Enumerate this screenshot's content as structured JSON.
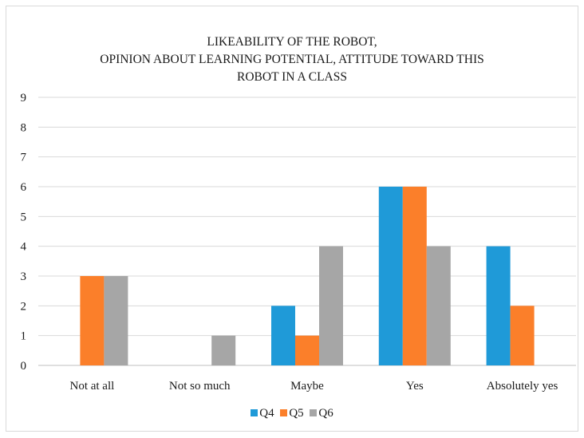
{
  "chart_data": {
    "type": "bar",
    "title": [
      "LIKEABILITY OF THE ROBOT,",
      "OPINION ABOUT LEARNING POTENTIAL, ATTITUDE TOWARD THIS",
      "ROBOT IN A CLASS"
    ],
    "categories": [
      "Not at all",
      "Not so much",
      "Maybe",
      "Yes",
      "Absolutely yes"
    ],
    "series": [
      {
        "name": "Q4",
        "color": "#1f9ad8",
        "values": [
          0,
          0,
          2,
          6,
          4
        ]
      },
      {
        "name": "Q5",
        "color": "#fb7f2a",
        "values": [
          3,
          0,
          1,
          6,
          2
        ]
      },
      {
        "name": "Q6",
        "color": "#a6a6a6",
        "values": [
          3,
          1,
          4,
          4,
          0
        ]
      }
    ],
    "ylim": [
      0,
      9
    ],
    "yticks": [
      "0",
      "1",
      "2",
      "3",
      "4",
      "5",
      "6",
      "7",
      "8",
      "9"
    ],
    "grid": true,
    "legend_position": "bottom"
  }
}
